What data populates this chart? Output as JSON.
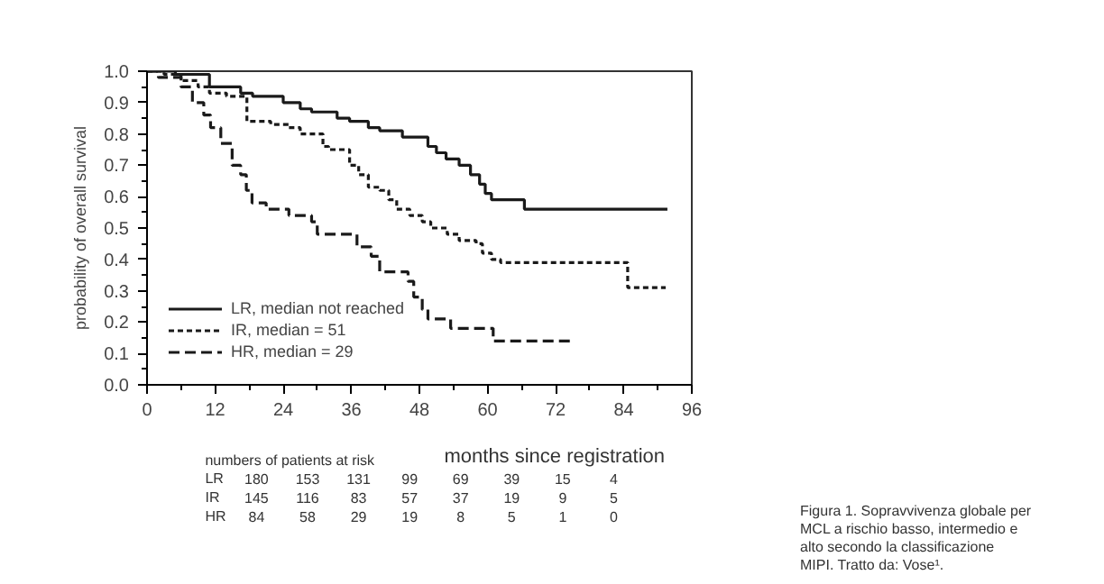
{
  "chart_data": {
    "type": "step",
    "ylabel": "probability of overall survival",
    "xlabel": "months since registration",
    "xlim": [
      0,
      96
    ],
    "ylim": [
      0,
      1
    ],
    "xticks": [
      0,
      12,
      24,
      36,
      48,
      60,
      72,
      84,
      96
    ],
    "yticks": [
      {
        "value": 0,
        "label": "0.0"
      },
      {
        "value": 0.1,
        "label": "0.1"
      },
      {
        "value": 0.2,
        "label": "0.2"
      },
      {
        "value": 0.3,
        "label": "0.3"
      },
      {
        "value": 0.4,
        "label": "0.4"
      },
      {
        "value": 0.5,
        "label": "0.5"
      },
      {
        "value": 0.6,
        "label": "0.6"
      },
      {
        "value": 0.7,
        "label": "0.7"
      },
      {
        "value": 0.8,
        "label": "0.8"
      },
      {
        "value": 0.9,
        "label": "0.9"
      },
      {
        "value": 1,
        "label": "1.0"
      }
    ],
    "grid": false,
    "legend": "bottom left",
    "series": [
      {
        "name": "LR, median not reached",
        "color": "#1a1a1a",
        "line_style": "solid",
        "x": [
          0,
          5,
          11,
          16.5,
          18.6,
          24,
          27,
          29,
          33.5,
          35.7,
          39,
          41,
          45,
          49.5,
          51,
          52.7,
          55,
          57,
          58.6,
          59.6,
          60.7,
          66.5,
          91.7
        ],
        "values": [
          1.0,
          0.99,
          0.95,
          0.93,
          0.92,
          0.9,
          0.88,
          0.87,
          0.85,
          0.84,
          0.82,
          0.81,
          0.79,
          0.76,
          0.74,
          0.72,
          0.7,
          0.67,
          0.64,
          0.61,
          0.59,
          0.56,
          0.56
        ]
      },
      {
        "name": "IR, median = 51",
        "color": "#1a1a1a",
        "line_style": "dotted",
        "x": [
          0,
          3,
          6,
          9,
          11,
          14,
          17.6,
          21.8,
          25,
          27,
          31,
          32,
          35.7,
          37.3,
          39,
          41,
          42.6,
          44,
          46.3,
          48.5,
          50,
          52.9,
          55,
          58,
          59.1,
          60.7,
          62.3,
          84.7,
          91.4
        ],
        "values": [
          1.0,
          0.99,
          0.97,
          0.95,
          0.93,
          0.92,
          0.84,
          0.83,
          0.82,
          0.8,
          0.76,
          0.75,
          0.7,
          0.67,
          0.63,
          0.62,
          0.59,
          0.56,
          0.54,
          0.52,
          0.5,
          0.48,
          0.46,
          0.45,
          0.42,
          0.4,
          0.39,
          0.31,
          0.31
        ]
      },
      {
        "name": "HR, median = 29",
        "color": "#1a1a1a",
        "line_style": "dashed",
        "x": [
          0,
          2,
          6,
          8,
          10,
          11.2,
          13,
          15,
          16.5,
          17.5,
          18.5,
          21,
          25,
          29,
          30,
          37,
          39.5,
          41,
          46,
          47,
          48.5,
          49.5,
          53.5,
          61,
          74.7
        ],
        "values": [
          1.0,
          0.98,
          0.95,
          0.9,
          0.86,
          0.82,
          0.77,
          0.7,
          0.67,
          0.62,
          0.58,
          0.56,
          0.54,
          0.52,
          0.48,
          0.44,
          0.41,
          0.36,
          0.33,
          0.28,
          0.24,
          0.21,
          0.18,
          0.14,
          0.14
        ]
      }
    ],
    "annotations": [
      "numbers of patients at risk",
      "LR 180 153 131 99 69 39 15 4",
      "IR 145 116 83 57 37 19 9 5",
      "HR 84 58 29 19 8 5 1 0",
      "Figura 1. Sopravvivenza globale per MCL a rischio basso, intermedio e alto secondo la classificazione MIPI. Tratto da: Vose¹."
    ]
  }
}
